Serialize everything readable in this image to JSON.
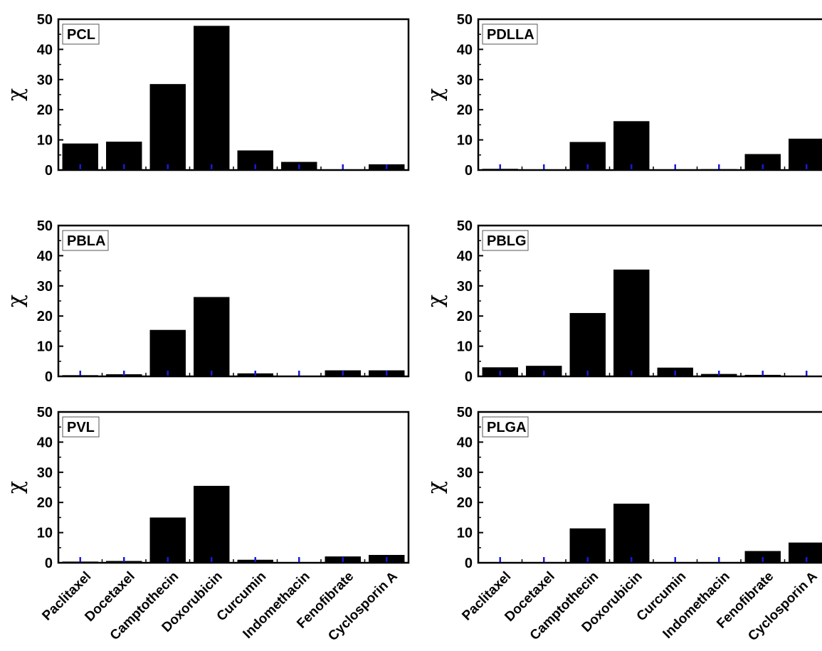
{
  "chart_data": [
    {
      "type": "bar",
      "title": "PCL",
      "ylabel": "χ",
      "ylim": [
        0,
        50
      ],
      "yticks": [
        "0",
        "10",
        "20",
        "30",
        "40",
        "50"
      ],
      "categories": [
        "Paclitaxel",
        "Docetaxel",
        "Camptothecin",
        "Doxorubicin",
        "Curcumin",
        "Indomethacin",
        "Fenofibrate",
        "Cyclosporin A"
      ],
      "values": [
        8.8,
        9.4,
        28.5,
        47.8,
        6.5,
        2.7,
        0.1,
        1.9
      ]
    },
    {
      "type": "bar",
      "title": "PDLLA",
      "ylabel": "χ",
      "ylim": [
        0,
        50
      ],
      "yticks": [
        "0",
        "10",
        "20",
        "30",
        "40",
        "50"
      ],
      "categories": [
        "Paclitaxel",
        "Docetaxel",
        "Camptothecin",
        "Doxorubicin",
        "Curcumin",
        "Indomethacin",
        "Fenofibrate",
        "Cyclosporin A"
      ],
      "values": [
        0.4,
        0.1,
        9.3,
        16.2,
        0.1,
        0.3,
        5.3,
        10.4
      ]
    },
    {
      "type": "bar",
      "title": "PBLA",
      "ylabel": "χ",
      "ylim": [
        0,
        50
      ],
      "yticks": [
        "0",
        "10",
        "20",
        "30",
        "40",
        "50"
      ],
      "categories": [
        "Paclitaxel",
        "Docetaxel",
        "Camptothecin",
        "Doxorubicin",
        "Curcumin",
        "Indomethacin",
        "Fenofibrate",
        "Cyclosporin A"
      ],
      "values": [
        0.4,
        0.7,
        15.4,
        26.3,
        1.0,
        0.1,
        2.0,
        2.0
      ]
    },
    {
      "type": "bar",
      "title": "PBLG",
      "ylabel": "χ",
      "ylim": [
        0,
        50
      ],
      "yticks": [
        "0",
        "10",
        "20",
        "30",
        "40",
        "50"
      ],
      "categories": [
        "Paclitaxel",
        "Docetaxel",
        "Camptothecin",
        "Doxorubicin",
        "Curcumin",
        "Indomethacin",
        "Fenofibrate",
        "Cyclosporin A"
      ],
      "values": [
        3.0,
        3.5,
        21.0,
        35.4,
        2.9,
        0.8,
        0.5,
        0.1
      ]
    },
    {
      "type": "bar",
      "title": "PVL",
      "ylabel": "χ",
      "ylim": [
        0,
        50
      ],
      "yticks": [
        "0",
        "10",
        "20",
        "30",
        "40",
        "50"
      ],
      "categories": [
        "Paclitaxel",
        "Docetaxel",
        "Camptothecin",
        "Doxorubicin",
        "Curcumin",
        "Indomethacin",
        "Fenofibrate",
        "Cyclosporin A"
      ],
      "values": [
        0.4,
        0.6,
        15.0,
        25.5,
        1.0,
        0.1,
        2.1,
        2.6
      ]
    },
    {
      "type": "bar",
      "title": "PLGA",
      "ylabel": "χ",
      "ylim": [
        0,
        50
      ],
      "yticks": [
        "0",
        "10",
        "20",
        "30",
        "40",
        "50"
      ],
      "categories": [
        "Paclitaxel",
        "Docetaxel",
        "Camptothecin",
        "Doxorubicin",
        "Curcumin",
        "Indomethacin",
        "Fenofibrate",
        "Cyclosporin A"
      ],
      "values": [
        0.1,
        0.1,
        11.4,
        19.6,
        0.1,
        0.1,
        3.9,
        6.7
      ]
    }
  ],
  "colors": {
    "bar": "#000000",
    "marker": "#1a1adb",
    "axis": "#000000"
  }
}
